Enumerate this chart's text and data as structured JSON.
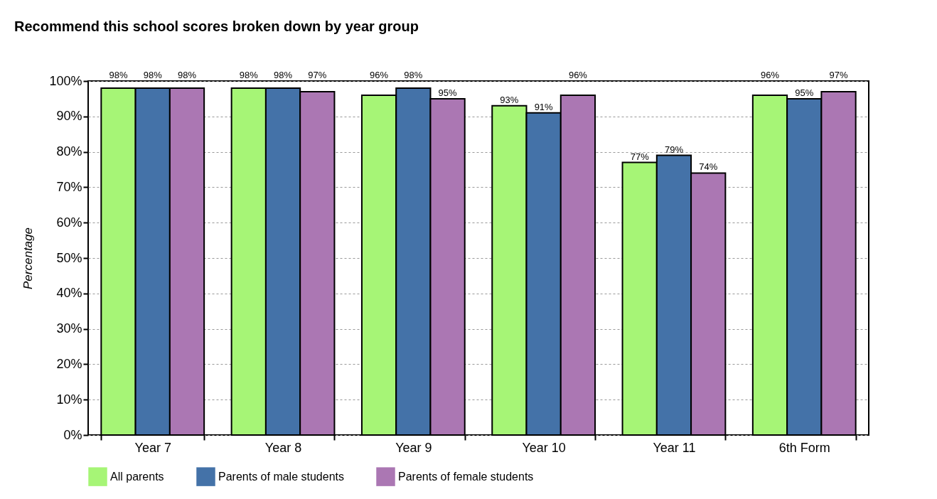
{
  "chart_data": {
    "type": "bar",
    "title": "Recommend this school scores broken down by year group",
    "ylabel": "Percentage",
    "categories": [
      "Year 7",
      "Year 8",
      "Year 9",
      "Year 10",
      "Year 11",
      "6th Form"
    ],
    "series": [
      {
        "name": "All parents",
        "color": "#a6f576",
        "values": [
          98,
          98,
          96,
          93,
          77,
          96
        ],
        "value_labels": [
          "98%",
          "98%",
          "96%",
          "93%",
          "77%",
          "96%"
        ]
      },
      {
        "name": "Parents of male students",
        "color": "#4472a8",
        "values": [
          98,
          98,
          98,
          91,
          79,
          95
        ],
        "value_labels": [
          "98%",
          "98%",
          "98%",
          "91%",
          "79%",
          "95%"
        ]
      },
      {
        "name": "Parents of female students",
        "color": "#ab77b3",
        "values": [
          98,
          97,
          95,
          96,
          74,
          97
        ],
        "value_labels": [
          "98%",
          "97%",
          "95%",
          "96%",
          "74%",
          "97%"
        ]
      }
    ],
    "ylim": [
      0,
      100
    ],
    "yticks": [
      {
        "value": 0,
        "label": "0%"
      },
      {
        "value": 10,
        "label": "10%"
      },
      {
        "value": 20,
        "label": "20%"
      },
      {
        "value": 30,
        "label": "30%"
      },
      {
        "value": 40,
        "label": "40%"
      },
      {
        "value": 50,
        "label": "50%"
      },
      {
        "value": 60,
        "label": "60%"
      },
      {
        "value": 70,
        "label": "70%"
      },
      {
        "value": 80,
        "label": "80%"
      },
      {
        "value": 90,
        "label": "90%"
      },
      {
        "value": 100,
        "label": "100%"
      }
    ],
    "grid": "y",
    "legend": "bottom"
  }
}
